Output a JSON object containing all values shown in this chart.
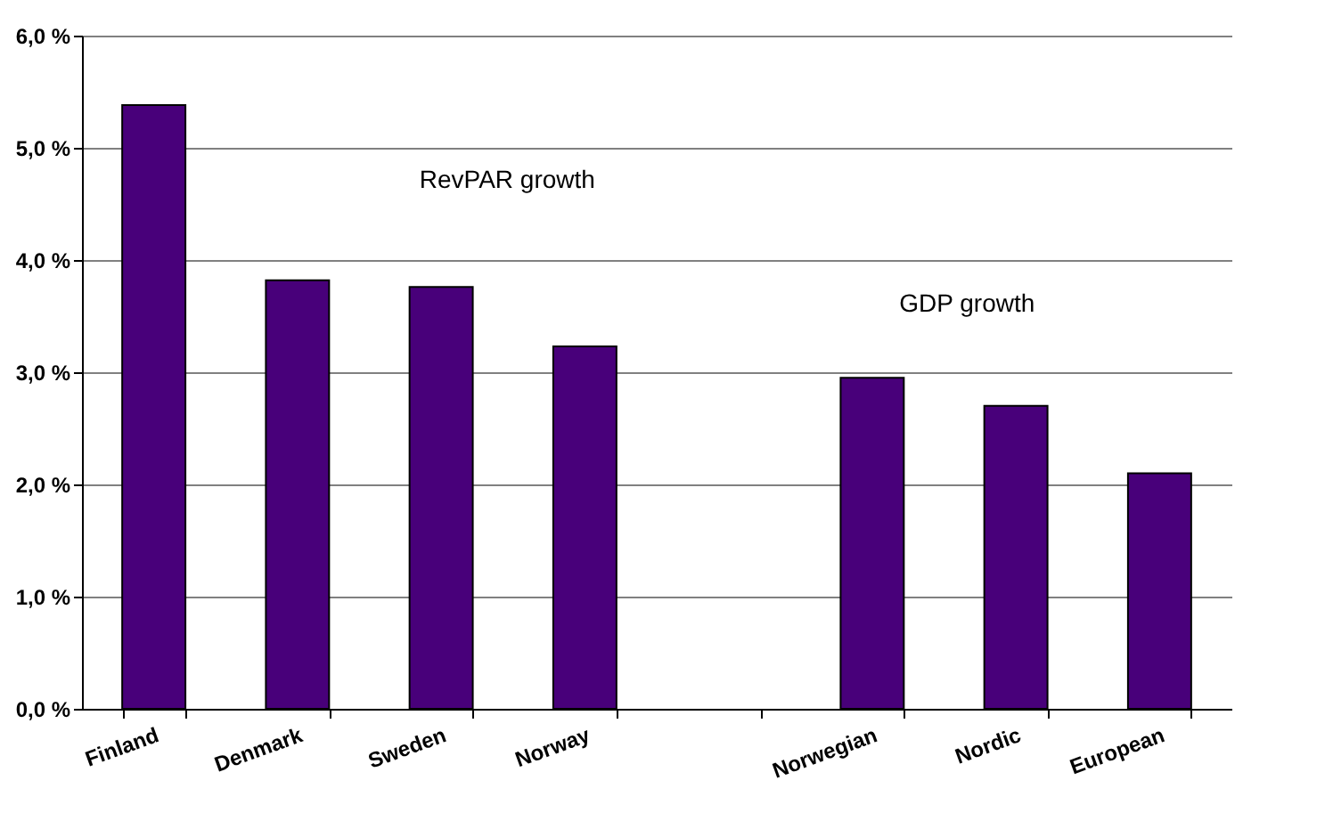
{
  "chart_data": {
    "type": "bar",
    "categories": [
      "Finland",
      "Denmark",
      "Sweden",
      "Norway",
      null,
      "Norwegian",
      "Nordic",
      "European"
    ],
    "values": [
      5.38,
      3.82,
      3.76,
      3.23,
      null,
      2.95,
      2.7,
      2.1
    ],
    "color": "#48007a",
    "ylim": [
      0,
      6
    ],
    "yticks": [
      {
        "value": 0,
        "label": "0,0 %"
      },
      {
        "value": 1,
        "label": "1,0 %"
      },
      {
        "value": 2,
        "label": "2,0 %"
      },
      {
        "value": 3,
        "label": "3,0 %"
      },
      {
        "value": 4,
        "label": "4,0 %"
      },
      {
        "value": 5,
        "label": "5,0 %"
      },
      {
        "value": 6,
        "label": "6,0 %"
      }
    ],
    "grid": "y",
    "annotations": [
      "RevPAR growth",
      "GDP growth"
    ]
  }
}
